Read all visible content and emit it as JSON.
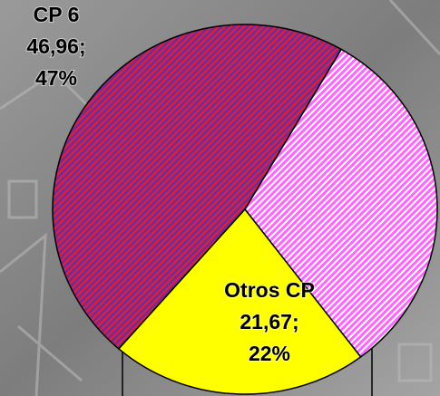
{
  "chart_data": {
    "type": "pie",
    "categories": [
      "CP 6",
      null,
      "Otros CP"
    ],
    "values": [
      46.96,
      31.37,
      21.67
    ],
    "value_labels": [
      "46,96;",
      null,
      "21,67;"
    ],
    "percent_labels": [
      "47%",
      null,
      "22%"
    ],
    "colors": [
      "#7a2a8e",
      "#ff66ff",
      "#ffff00"
    ],
    "stripe_colors": [
      "#e0203a",
      "#ffffff",
      null
    ]
  }
}
